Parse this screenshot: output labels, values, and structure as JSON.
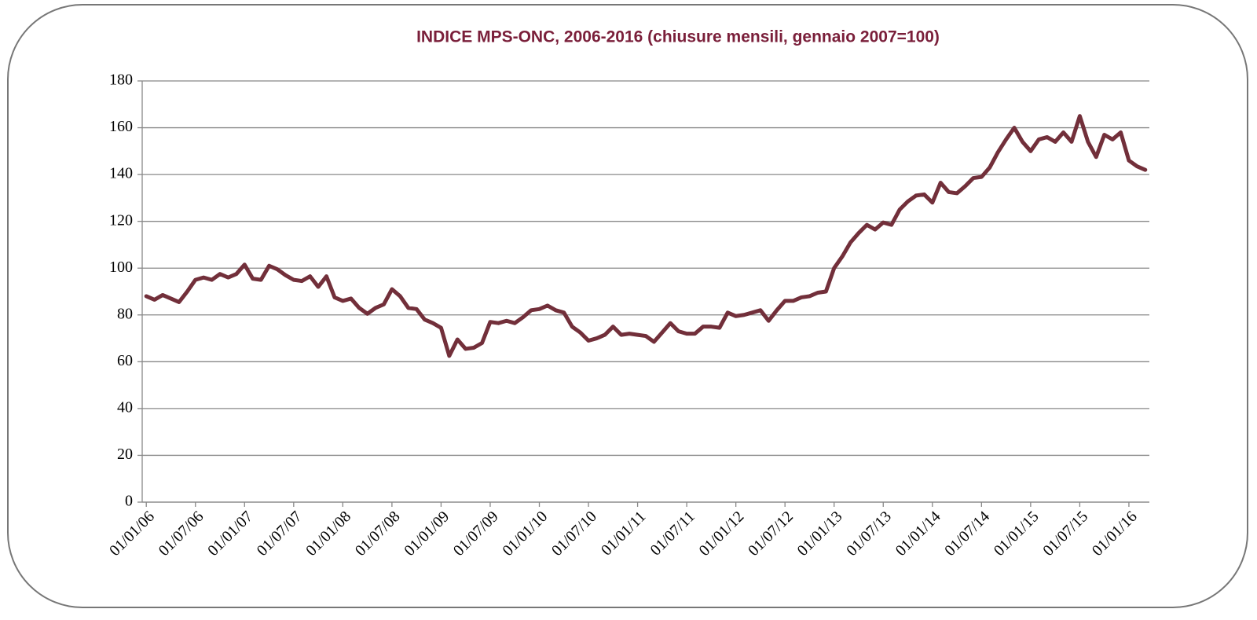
{
  "chart_data": {
    "type": "line",
    "title": "INDICE MPS-ONC, 2006-2016 (chiusure mensili, gennaio 2007=100)",
    "categories": [
      "01/01/06",
      null,
      null,
      null,
      null,
      null,
      "01/07/06",
      null,
      null,
      null,
      null,
      null,
      "01/01/07",
      null,
      null,
      null,
      null,
      null,
      "01/07/07",
      null,
      null,
      null,
      null,
      null,
      "01/01/08",
      null,
      null,
      null,
      null,
      null,
      "01/07/08",
      null,
      null,
      null,
      null,
      null,
      "01/01/09",
      null,
      null,
      null,
      null,
      null,
      "01/07/09",
      null,
      null,
      null,
      null,
      null,
      "01/01/10",
      null,
      null,
      null,
      null,
      null,
      "01/07/10",
      null,
      null,
      null,
      null,
      null,
      "01/01/11",
      null,
      null,
      null,
      null,
      null,
      "01/07/11",
      null,
      null,
      null,
      null,
      null,
      "01/01/12",
      null,
      null,
      null,
      null,
      null,
      "01/07/12",
      null,
      null,
      null,
      null,
      null,
      "01/01/13",
      null,
      null,
      null,
      null,
      null,
      "01/07/13",
      null,
      null,
      null,
      null,
      null,
      "01/01/14",
      null,
      null,
      null,
      null,
      null,
      "01/07/14",
      null,
      null,
      null,
      null,
      null,
      "01/01/15",
      null,
      null,
      null,
      null,
      null,
      "01/07/15",
      null,
      null,
      null,
      null,
      null,
      "01/01/16",
      null,
      null
    ],
    "values": [
      88,
      86.5,
      88.5,
      87,
      85.5,
      90,
      95,
      96,
      95,
      97.5,
      96,
      97.5,
      101.5,
      95.5,
      95,
      101,
      99.5,
      97,
      95,
      94.5,
      96.5,
      92,
      96.5,
      87.5,
      86,
      87,
      83,
      80.5,
      83,
      84.5,
      91,
      88,
      83,
      82.5,
      78,
      76.5,
      74.5,
      62.5,
      69.5,
      65.5,
      66,
      68,
      77,
      76.5,
      77.5,
      76.5,
      79,
      82,
      82.5,
      84,
      82,
      81,
      75,
      72.5,
      69,
      70,
      71.5,
      75,
      71.5,
      72,
      71.5,
      71,
      68.5,
      72.5,
      76.5,
      73,
      72,
      72,
      75,
      75,
      74.5,
      81,
      79.5,
      80,
      81,
      82,
      77.5,
      82,
      86,
      86,
      87.5,
      88,
      89.5,
      90,
      100,
      105,
      111,
      115,
      118.5,
      116.5,
      119.5,
      118.5,
      125,
      128.5,
      131,
      131.5,
      128,
      136.5,
      132.5,
      132,
      135,
      138.5,
      139,
      143,
      149.5,
      155,
      160,
      154,
      150,
      155,
      156,
      154,
      158,
      154,
      165,
      154,
      147.5,
      157,
      155,
      158,
      146,
      143.5,
      142
    ],
    "color": "#722f3a",
    "ylim": [
      0,
      180
    ],
    "yticks": [
      0,
      20,
      40,
      60,
      80,
      100,
      120,
      140,
      160,
      180
    ],
    "grid": true
  }
}
